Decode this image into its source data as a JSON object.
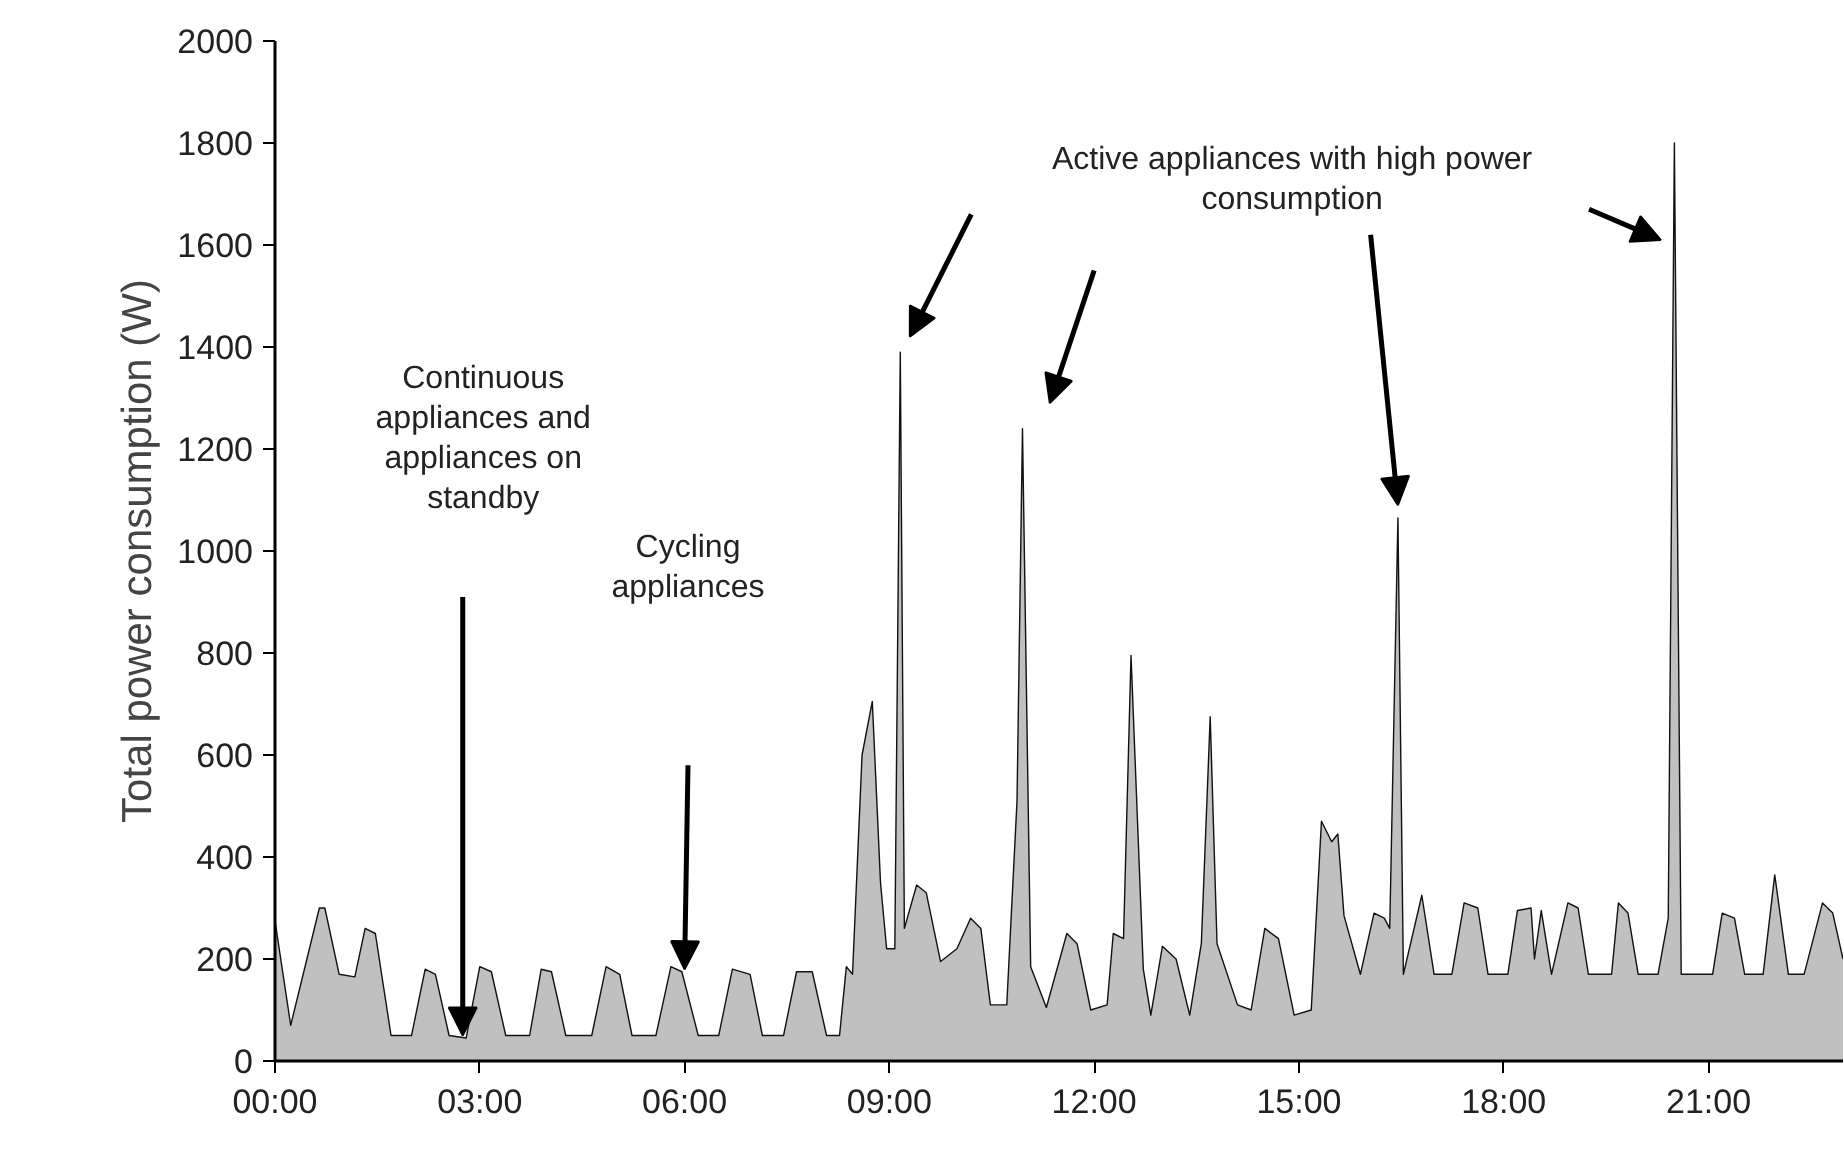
{
  "chart_data": {
    "type": "area",
    "ylabel": "Total power consumption (W)",
    "x": [
      0,
      0.23,
      0.65,
      0.73,
      0.94,
      1.17,
      1.32,
      1.47,
      1.7,
      2.0,
      2.2,
      2.35,
      2.55,
      2.8,
      3.0,
      3.17,
      3.38,
      3.73,
      3.9,
      4.05,
      4.26,
      4.64,
      4.85,
      5.05,
      5.23,
      5.58,
      5.8,
      5.96,
      6.2,
      6.5,
      6.7,
      6.96,
      7.14,
      7.45,
      7.64,
      7.87,
      8.08,
      8.27,
      8.37,
      8.46,
      8.6,
      8.75,
      8.87,
      8.96,
      9.08,
      9.16,
      9.22,
      9.4,
      9.54,
      9.75,
      9.99,
      10.19,
      10.34,
      10.48,
      10.72,
      10.87,
      10.95,
      11.07,
      11.3,
      11.6,
      11.75,
      11.95,
      12.19,
      12.28,
      12.43,
      12.54,
      12.72,
      12.83,
      13.0,
      13.2,
      13.4,
      13.57,
      13.7,
      13.8,
      14.1,
      14.3,
      14.5,
      14.7,
      14.93,
      15.18,
      15.33,
      15.48,
      15.57,
      15.66,
      15.9,
      16.1,
      16.25,
      16.33,
      16.45,
      16.53,
      16.8,
      16.98,
      17.24,
      17.42,
      17.62,
      17.77,
      18.06,
      18.2,
      18.4,
      18.45,
      18.55,
      18.7,
      18.94,
      19.09,
      19.24,
      19.58,
      19.68,
      19.82,
      19.97,
      20.26,
      20.41,
      20.5,
      20.6,
      21.06,
      21.2,
      21.38,
      21.53,
      21.8,
      21.97,
      22.17,
      22.4,
      22.67,
      22.82,
      22.97
    ],
    "series": [
      {
        "color": "#c0c0c0",
        "values": [
          275,
          70,
          300,
          300,
          170,
          165,
          260,
          250,
          50,
          50,
          180,
          170,
          50,
          45,
          185,
          175,
          50,
          50,
          180,
          175,
          50,
          50,
          185,
          170,
          50,
          50,
          185,
          175,
          50,
          50,
          180,
          170,
          50,
          50,
          175,
          175,
          50,
          50,
          185,
          170,
          600,
          705,
          350,
          220,
          220,
          1390,
          260,
          345,
          330,
          195,
          220,
          280,
          260,
          110,
          110,
          510,
          1240,
          185,
          105,
          250,
          230,
          100,
          110,
          250,
          240,
          795,
          180,
          90,
          225,
          200,
          90,
          230,
          675,
          230,
          110,
          100,
          260,
          240,
          90,
          100,
          470,
          430,
          445,
          285,
          170,
          290,
          280,
          260,
          1065,
          170,
          325,
          170,
          170,
          310,
          300,
          170,
          170,
          295,
          300,
          200,
          295,
          170,
          310,
          300,
          170,
          170,
          310,
          290,
          170,
          170,
          280,
          1800,
          170,
          170,
          290,
          280,
          170,
          170,
          365,
          170,
          170,
          310,
          290,
          200
        ]
      }
    ],
    "xlim": [
      0,
      22.97
    ],
    "xticks": [
      {
        "value": 0,
        "label": "00:00"
      },
      {
        "value": 3,
        "label": "03:00"
      },
      {
        "value": 6,
        "label": "06:00"
      },
      {
        "value": 9,
        "label": "09:00"
      },
      {
        "value": 12,
        "label": "12:00"
      },
      {
        "value": 15,
        "label": "15:00"
      },
      {
        "value": 18,
        "label": "18:00"
      },
      {
        "value": 21,
        "label": "21:00"
      }
    ],
    "ylim": [
      0,
      2000
    ],
    "yticks": [
      0,
      200,
      400,
      600,
      800,
      1000,
      1200,
      1400,
      1600,
      1800,
      2000
    ],
    "grid": false,
    "annotations": [
      "Continuous appliances and appliances on standby",
      "Cycling appliances",
      "Active appliances with high power consumption"
    ]
  }
}
